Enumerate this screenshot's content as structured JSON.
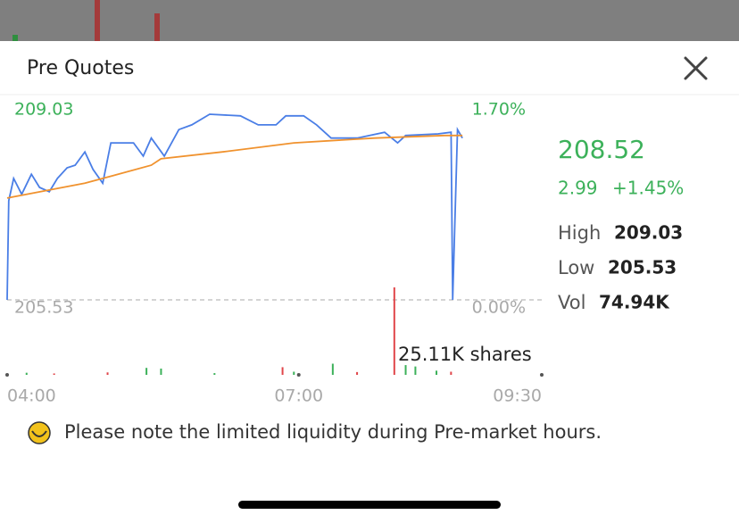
{
  "header": {
    "title": "Pre Quotes"
  },
  "chart_data": [
    {
      "type": "line",
      "xlim": [
        "04:00",
        "09:30"
      ],
      "xticks": [
        "04:00",
        "07:00",
        "09:30"
      ],
      "ylim": [
        205.53,
        209.03
      ],
      "yticks": [
        205.53,
        209.03
      ],
      "y2lim": [
        0,
        1.7
      ],
      "y2ticks": [
        {
          "value": 0,
          "label": "0.00%"
        },
        {
          "value": 1.7,
          "label": "1.70%"
        }
      ],
      "series": [
        {
          "color": "#4a7ee6",
          "x": [
            "04:00",
            "04:01",
            "04:04",
            "04:09",
            "04:15",
            "04:20",
            "04:26",
            "04:31",
            "04:37",
            "04:42",
            "04:48",
            "04:53",
            "04:59",
            "05:04",
            "05:18",
            "05:24",
            "05:29",
            "05:37",
            "05:46",
            "05:54",
            "06:05",
            "06:24",
            "06:35",
            "06:46",
            "06:52",
            "07:03",
            "07:11",
            "07:20",
            "07:36",
            "07:53",
            "08:01",
            "08:06",
            "08:26",
            "08:34",
            "08:35",
            "08:38",
            "08:41"
          ],
          "values": [
            205.53,
            207.4,
            207.82,
            207.52,
            207.9,
            207.65,
            207.57,
            207.82,
            208.02,
            208.07,
            208.32,
            207.99,
            207.73,
            208.49,
            208.49,
            208.24,
            208.58,
            208.24,
            208.74,
            208.83,
            209.03,
            209.0,
            208.83,
            208.83,
            209.0,
            209.0,
            208.83,
            208.58,
            208.58,
            208.69,
            208.49,
            208.63,
            208.66,
            208.69,
            205.53,
            208.74,
            208.58
          ]
        },
        {
          "color": "#f0922e",
          "x": [
            "04:00",
            "04:48",
            "04:59",
            "05:29",
            "05:35",
            "06:13",
            "06:57",
            "07:47",
            "08:30",
            "08:41"
          ],
          "values": [
            207.45,
            207.73,
            207.82,
            208.07,
            208.19,
            208.32,
            208.49,
            208.58,
            208.63,
            208.63
          ]
        }
      ]
    },
    {
      "type": "bar",
      "annotation": "25.11K shares",
      "ylim": [
        0,
        25110
      ],
      "x": [
        "04:12",
        "04:29",
        "05:02",
        "05:26",
        "05:35",
        "06:08",
        "06:50",
        "06:57",
        "07:21",
        "07:36",
        "07:59",
        "08:06",
        "08:12",
        "08:25",
        "08:34"
      ],
      "values": [
        600,
        400,
        700,
        2000,
        1800,
        500,
        2200,
        900,
        3200,
        800,
        25110,
        2800,
        2400,
        1200,
        900
      ],
      "colors": [
        "#3cb15a",
        "#e0464a",
        "#e0464a",
        "#3cb15a",
        "#3cb15a",
        "#3cb15a",
        "#e0464a",
        "#3cb15a",
        "#3cb15a",
        "#e0464a",
        "#e0464a",
        "#3cb15a",
        "#3cb15a",
        "#3cb15a",
        "#e0464a"
      ]
    }
  ],
  "quote": {
    "price": "208.52",
    "change": "2.99",
    "change_pct": "+1.45%",
    "stats": [
      {
        "label": "High",
        "value": "209.03"
      },
      {
        "label": "Low",
        "value": "205.53"
      },
      {
        "label": "Vol",
        "value": "74.94K"
      }
    ]
  },
  "note": "Please note the limited liquidity during Pre-market hours."
}
